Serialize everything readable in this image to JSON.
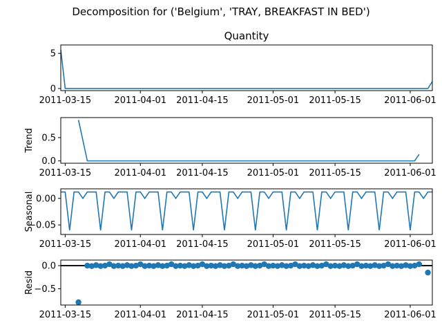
{
  "suptitle": "Decomposition for ('Belgium', 'TRAY, BREAKFAST IN BED')",
  "chart_data": [
    {
      "type": "line",
      "title": "Quantity",
      "ylabel": "",
      "start_date": "2011-03-14",
      "end_date": "2011-06-06",
      "ylim": [
        -0.3,
        6.2
      ],
      "yticks": [
        0,
        5
      ],
      "ytick_labels": [
        "0",
        "5"
      ],
      "xtick_dates": [
        "2011-03-15",
        "2011-04-01",
        "2011-04-15",
        "2011-05-01",
        "2011-05-15",
        "2011-06-01"
      ],
      "series": [
        {
          "dates": [
            "2011-03-14",
            "2011-03-15",
            "2011-06-05",
            "2011-06-06"
          ],
          "values": [
            5.5,
            0,
            0,
            1
          ]
        }
      ]
    },
    {
      "type": "line",
      "title": "",
      "ylabel": "Trend",
      "ylim": [
        -0.05,
        0.93
      ],
      "yticks": [
        0,
        0.5
      ],
      "ytick_labels": [
        "0.0",
        "0.5"
      ],
      "xtick_dates": [
        "2011-03-15",
        "2011-04-01",
        "2011-04-15",
        "2011-05-01",
        "2011-05-15",
        "2011-06-01"
      ],
      "series": [
        {
          "dates": [
            "2011-03-18",
            "2011-03-20",
            "2011-06-02",
            "2011-06-03"
          ],
          "values": [
            0.88,
            0,
            0,
            0.14
          ]
        }
      ]
    },
    {
      "type": "line",
      "title": "",
      "ylabel": "Seasonal",
      "ylim": [
        -0.068,
        0.018
      ],
      "yticks": [
        0,
        -0.05
      ],
      "ytick_labels": [
        "0.00",
        "−0.05"
      ],
      "xtick_dates": [
        "2011-03-15",
        "2011-04-01",
        "2011-04-15",
        "2011-05-01",
        "2011-05-15",
        "2011-06-01"
      ],
      "pattern": [
        0.012,
        0.012,
        -0.06,
        0.012,
        0.012,
        0.0,
        0.012
      ],
      "series": [
        {
          "start": "2011-03-14",
          "end": "2011-06-06"
        }
      ]
    },
    {
      "type": "scatter",
      "title": "",
      "ylabel": "Resid",
      "ylim": [
        -0.85,
        0.12
      ],
      "yticks": [
        0,
        -0.5
      ],
      "ytick_labels": [
        "0.0",
        "−0.5"
      ],
      "hline": 0,
      "xtick_dates": [
        "2011-03-15",
        "2011-04-01",
        "2011-04-15",
        "2011-05-01",
        "2011-05-15",
        "2011-06-01"
      ],
      "series": [
        {
          "start": "2011-03-20",
          "end": "2011-06-03",
          "pattern": [
            0.0,
            -0.01,
            0.01,
            -0.01,
            0.0,
            0.03,
            -0.01
          ],
          "extra": [
            {
              "date": "2011-03-18",
              "value": -0.79
            },
            {
              "date": "2011-06-05",
              "value": -0.15
            }
          ]
        }
      ]
    }
  ]
}
